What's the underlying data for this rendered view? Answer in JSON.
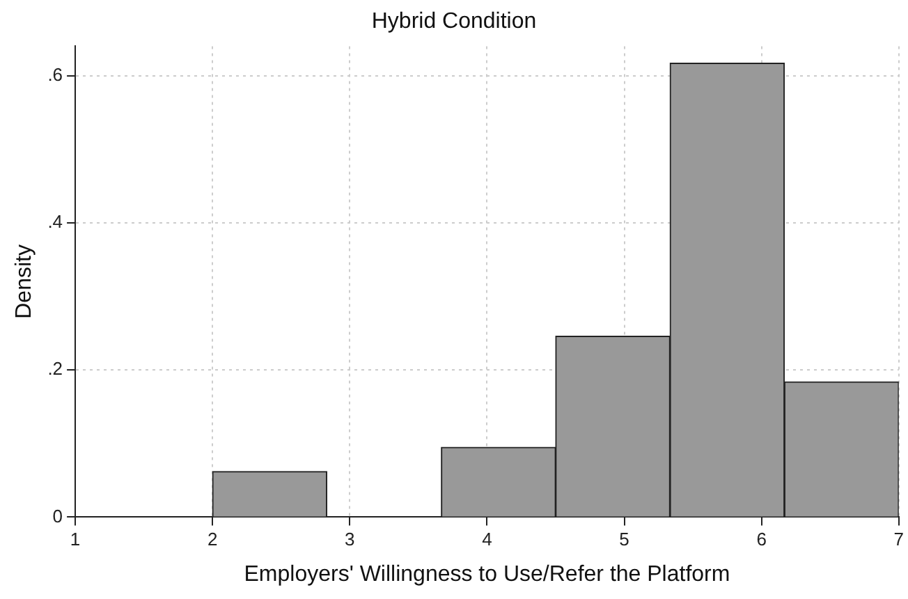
{
  "chart_data": {
    "type": "histogram",
    "title": "Hybrid Condition",
    "xlabel": "Employers' Willingness to Use/Refer the Platform",
    "ylabel": "Density",
    "bins": [
      2,
      2.833,
      3.667,
      4.5,
      5.333,
      6.167,
      7
    ],
    "values": [
      0.062,
      0,
      0.095,
      0.246,
      0.617,
      0.184
    ],
    "color": "#999999",
    "xlim": [
      1,
      7
    ],
    "xticks": [
      1,
      2,
      3,
      4,
      5,
      6,
      7
    ],
    "ylim": [
      0,
      0.64
    ],
    "yticks": [
      0,
      {
        "value": 0.2,
        "label": ".2"
      },
      {
        "value": 0.4,
        "label": ".4"
      },
      {
        "value": 0.6,
        "label": ".6"
      }
    ],
    "grid": true
  }
}
